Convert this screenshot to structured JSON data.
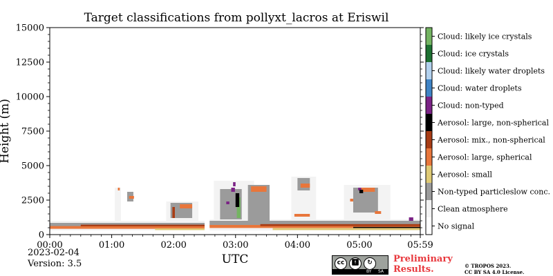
{
  "title": "Target classifications from pollyxt_lacros at Eriswil",
  "footer": {
    "date": "2023-02-04",
    "version": "Version: 3.5",
    "preliminary_line1": "Preliminary",
    "preliminary_line2": "Results.",
    "copyright_line1": "© TROPOS 2023.",
    "copyright_line2": "CC BY SA 4.0 License.",
    "cc_badge_labels": [
      "cc",
      "BY",
      "SA"
    ]
  },
  "chart_data": {
    "type": "heatmap",
    "title": "Target classifications from pollyxt_lacros at Eriswil",
    "xlabel": "UTC",
    "ylabel": "Height (m)",
    "x_ticks": [
      "00:00",
      "01:00",
      "02:00",
      "03:00",
      "04:00",
      "05:00",
      "05:59"
    ],
    "x_tick_hours": [
      0,
      1,
      2,
      3,
      4,
      5,
      5.983
    ],
    "xlim_hours": [
      0,
      5.983
    ],
    "y_ticks": [
      0,
      2500,
      5000,
      7500,
      10000,
      12500,
      15000
    ],
    "ylim": [
      0,
      15000
    ],
    "legend_placement": "right colorbar",
    "classes": [
      {
        "code": 0,
        "name": "No signal",
        "color": "#ffffff"
      },
      {
        "code": 1,
        "name": "Clean atmosphere",
        "color": "#f3f3f3"
      },
      {
        "code": 2,
        "name": "Non-typed particleslow conc.",
        "color": "#9b9b9b"
      },
      {
        "code": 3,
        "name": "Aerosol: small",
        "color": "#dfca75"
      },
      {
        "code": 4,
        "name": "Aerosol: large, spherical",
        "color": "#e8763b"
      },
      {
        "code": 5,
        "name": "Aerosol: mix., non-spherical",
        "color": "#a83c14"
      },
      {
        "code": 6,
        "name": "Aerosol: large, non-spherical",
        "color": "#000000"
      },
      {
        "code": 7,
        "name": "Cloud: non-typed",
        "color": "#7b2386"
      },
      {
        "code": 8,
        "name": "Cloud: water droplets",
        "color": "#3f84c6"
      },
      {
        "code": 9,
        "name": "Cloud: likely water droplets",
        "color": "#b3d2ef"
      },
      {
        "code": 10,
        "name": "Cloud: ice crystals",
        "color": "#1d7132"
      },
      {
        "code": 11,
        "name": "Cloud: likely ice crystals",
        "color": "#74b462"
      }
    ],
    "data_gaps_hours": [
      [
        2.5,
        2.58
      ]
    ],
    "regions": [
      {
        "code": 1,
        "t0": 0.0,
        "t1": 2.5,
        "h0": 300,
        "h1": 1000
      },
      {
        "code": 1,
        "t0": 2.58,
        "t1": 5.983,
        "h0": 300,
        "h1": 1100
      },
      {
        "code": 2,
        "t0": 0.0,
        "t1": 2.5,
        "h0": 550,
        "h1": 850
      },
      {
        "code": 2,
        "t0": 2.58,
        "t1": 5.983,
        "h0": 600,
        "h1": 1000
      },
      {
        "code": 4,
        "t0": 0.0,
        "t1": 2.5,
        "h0": 420,
        "h1": 620
      },
      {
        "code": 4,
        "t0": 2.58,
        "t1": 5.983,
        "h0": 480,
        "h1": 700
      },
      {
        "code": 3,
        "t0": 1.7,
        "t1": 2.5,
        "h0": 330,
        "h1": 450
      },
      {
        "code": 3,
        "t0": 3.6,
        "t1": 5.983,
        "h0": 330,
        "h1": 470
      },
      {
        "code": 5,
        "t0": 0.5,
        "t1": 2.5,
        "h0": 600,
        "h1": 720
      },
      {
        "code": 5,
        "t0": 3.4,
        "t1": 5.983,
        "h0": 620,
        "h1": 760
      },
      {
        "code": 6,
        "t0": 4.9,
        "t1": 5.983,
        "h0": 480,
        "h1": 560
      },
      {
        "code": 1,
        "t0": 1.05,
        "t1": 1.15,
        "h0": 1000,
        "h1": 3400
      },
      {
        "code": 2,
        "t0": 1.25,
        "t1": 1.35,
        "h0": 2400,
        "h1": 3100
      },
      {
        "code": 4,
        "t0": 1.1,
        "t1": 1.13,
        "h0": 3200,
        "h1": 3400
      },
      {
        "code": 4,
        "t0": 1.28,
        "t1": 1.36,
        "h0": 2600,
        "h1": 2800
      },
      {
        "code": 1,
        "t0": 1.88,
        "t1": 2.4,
        "h0": 1000,
        "h1": 2400
      },
      {
        "code": 2,
        "t0": 1.95,
        "t1": 2.3,
        "h0": 1200,
        "h1": 2300
      },
      {
        "code": 4,
        "t0": 2.1,
        "t1": 2.3,
        "h0": 1900,
        "h1": 2200
      },
      {
        "code": 5,
        "t0": 1.98,
        "t1": 2.02,
        "h0": 1200,
        "h1": 2000
      },
      {
        "code": 1,
        "t0": 2.65,
        "t1": 3.3,
        "h0": 1000,
        "h1": 3900
      },
      {
        "code": 2,
        "t0": 2.75,
        "t1": 3.1,
        "h0": 1100,
        "h1": 3300
      },
      {
        "code": 2,
        "t0": 3.2,
        "t1": 3.55,
        "h0": 1000,
        "h1": 3600
      },
      {
        "code": 4,
        "t0": 3.25,
        "t1": 3.5,
        "h0": 3100,
        "h1": 3500
      },
      {
        "code": 11,
        "t0": 3.02,
        "t1": 3.08,
        "h0": 1200,
        "h1": 2700
      },
      {
        "code": 7,
        "t0": 2.93,
        "t1": 2.99,
        "h0": 3100,
        "h1": 3400
      },
      {
        "code": 7,
        "t0": 2.96,
        "t1": 3.0,
        "h0": 3500,
        "h1": 3800
      },
      {
        "code": 7,
        "t0": 2.85,
        "t1": 2.9,
        "h0": 2200,
        "h1": 2400
      },
      {
        "code": 6,
        "t0": 3.0,
        "t1": 3.06,
        "h0": 2000,
        "h1": 3000
      },
      {
        "code": 1,
        "t0": 3.9,
        "t1": 4.3,
        "h0": 1100,
        "h1": 4200
      },
      {
        "code": 2,
        "t0": 4.0,
        "t1": 4.2,
        "h0": 3200,
        "h1": 4100
      },
      {
        "code": 4,
        "t0": 4.05,
        "t1": 4.2,
        "h0": 3400,
        "h1": 3700
      },
      {
        "code": 4,
        "t0": 3.95,
        "t1": 4.2,
        "h0": 1300,
        "h1": 1500
      },
      {
        "code": 1,
        "t0": 4.75,
        "t1": 5.5,
        "h0": 1000,
        "h1": 3600
      },
      {
        "code": 2,
        "t0": 4.9,
        "t1": 5.3,
        "h0": 1600,
        "h1": 3400
      },
      {
        "code": 4,
        "t0": 5.0,
        "t1": 5.25,
        "h0": 3100,
        "h1": 3400
      },
      {
        "code": 4,
        "t0": 4.85,
        "t1": 4.9,
        "h0": 2400,
        "h1": 2600
      },
      {
        "code": 7,
        "t0": 4.98,
        "t1": 5.03,
        "h0": 3200,
        "h1": 3400
      },
      {
        "code": 6,
        "t0": 5.0,
        "t1": 5.06,
        "h0": 3000,
        "h1": 3250
      },
      {
        "code": 4,
        "t0": 5.25,
        "t1": 5.35,
        "h0": 1500,
        "h1": 1700
      },
      {
        "code": 7,
        "t0": 5.8,
        "t1": 5.87,
        "h0": 1000,
        "h1": 1250
      }
    ]
  }
}
